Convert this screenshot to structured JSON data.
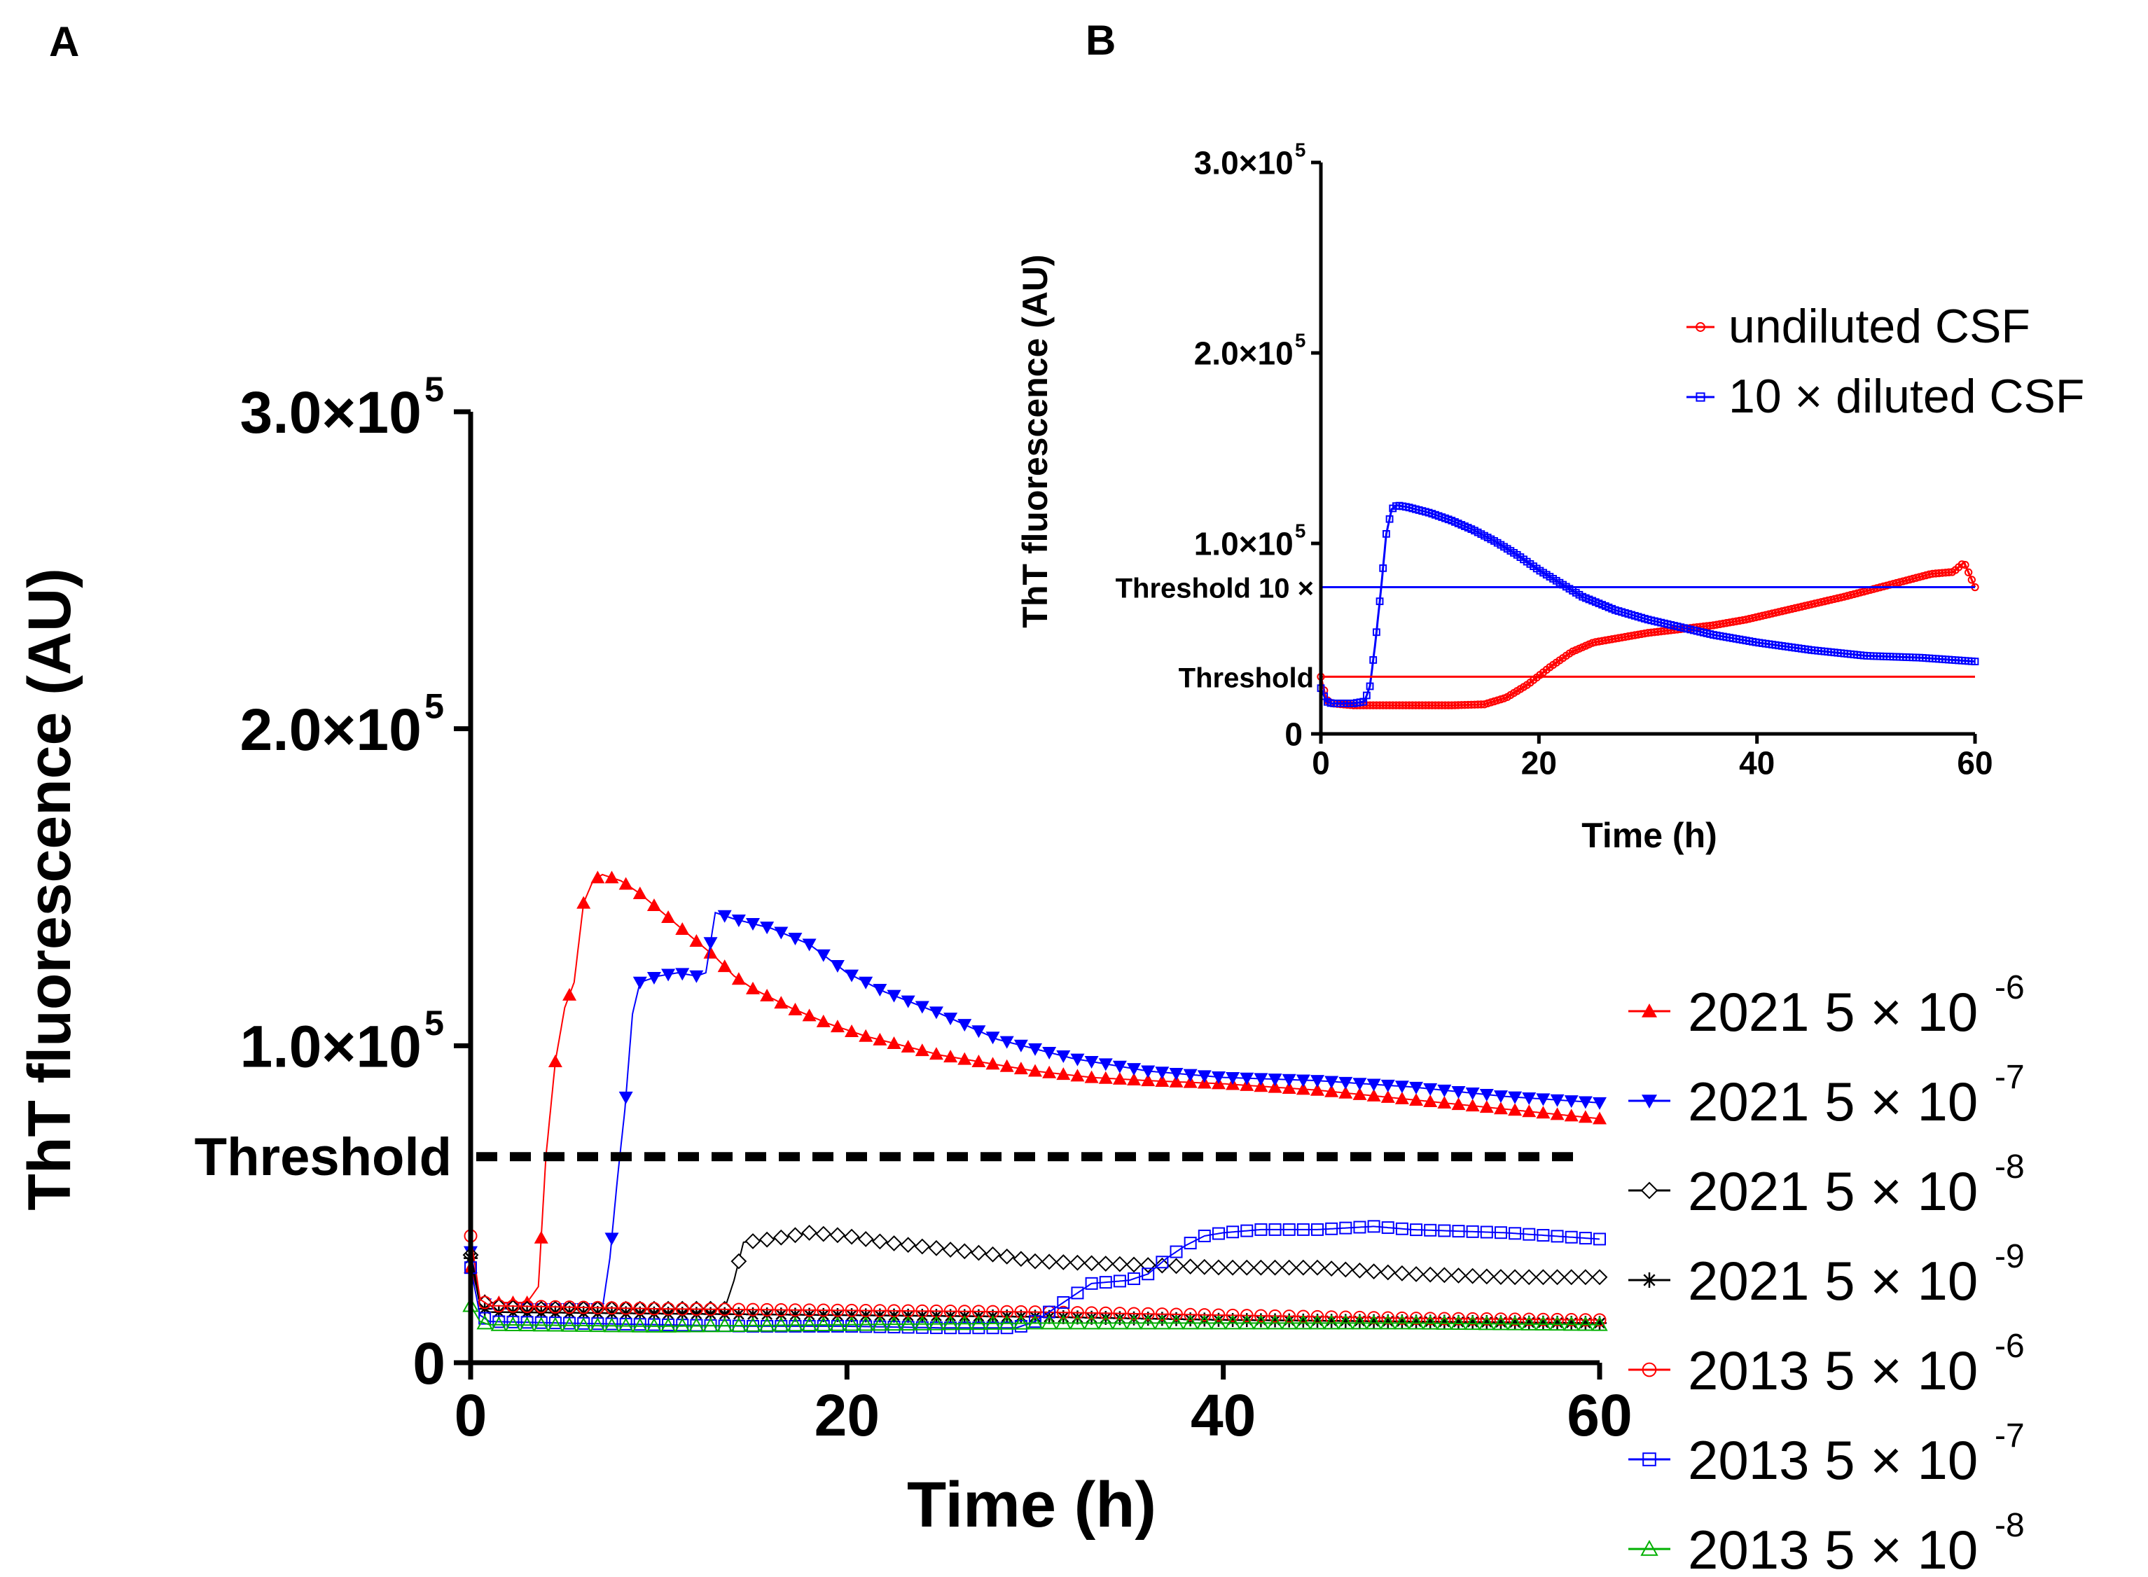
{
  "panels": {
    "a": {
      "label": "A"
    },
    "b": {
      "label": "B"
    }
  },
  "chart_data": [
    {
      "panel": "A",
      "type": "line",
      "title": "",
      "xlabel": "Time (h)",
      "ylabel": "ThT fluorescence (AU)",
      "xlim": [
        0,
        60
      ],
      "ylim": [
        0,
        300000
      ],
      "x_ticks": [
        "0",
        "20",
        "40",
        "60"
      ],
      "y_ticks": [
        {
          "value": 0,
          "label": "0"
        },
        {
          "value": 100000,
          "label": "1.0×10",
          "exp": "5"
        },
        {
          "value": 200000,
          "label": "2.0×10",
          "exp": "5"
        },
        {
          "value": 300000,
          "label": "3.0×10",
          "exp": "5"
        }
      ],
      "threshold": {
        "label": "Threshold",
        "value": 65000
      },
      "legend_position": "right",
      "series": [
        {
          "name": "2021 5 × 10",
          "exp": "-6",
          "color": "#ff0000",
          "marker": "triangle-up-filled",
          "x": [
            0,
            0.5,
            1,
            2,
            3,
            3.6,
            4,
            4.5,
            5,
            5.5,
            6,
            6.5,
            7,
            8,
            9,
            10,
            11,
            12,
            13,
            14,
            15,
            17,
            19,
            21,
            23,
            25,
            27,
            30,
            33,
            36,
            40,
            45,
            50,
            55,
            60
          ],
          "values": [
            30000,
            20000,
            19000,
            19000,
            19000,
            24000,
            65000,
            95000,
            112000,
            120000,
            145000,
            152000,
            154000,
            152000,
            148000,
            143000,
            138000,
            133000,
            128000,
            122000,
            118000,
            112000,
            107000,
            103000,
            100000,
            97000,
            95000,
            92000,
            90000,
            89000,
            88000,
            86000,
            83000,
            80000,
            77000
          ]
        },
        {
          "name": "2021 5 × 10",
          "exp": "-7",
          "color": "#0000ff",
          "marker": "triangle-down-filled",
          "x": [
            0,
            0.5,
            1,
            3,
            5,
            7,
            7.4,
            7.8,
            8.2,
            8.6,
            9,
            10,
            11,
            12,
            12.5,
            13,
            14,
            16,
            18,
            20,
            22,
            25,
            28,
            32,
            36,
            40,
            45,
            50,
            55,
            60
          ],
          "values": [
            35000,
            20000,
            17000,
            17000,
            17000,
            17000,
            33000,
            58000,
            80000,
            110000,
            120000,
            122000,
            123000,
            122000,
            123000,
            142000,
            140000,
            137000,
            132000,
            123000,
            117000,
            110000,
            102000,
            96000,
            92000,
            90000,
            89000,
            87000,
            84000,
            82000
          ]
        },
        {
          "name": "2021 5 × 10",
          "exp": "-8",
          "color": "#000000",
          "marker": "diamond-open",
          "x": [
            0,
            0.5,
            1,
            3,
            6,
            9,
            12,
            13.5,
            14,
            14.5,
            16,
            18,
            20,
            22,
            25,
            28,
            30,
            35,
            40,
            45,
            50,
            55,
            60
          ],
          "values": [
            34000,
            20000,
            18000,
            17000,
            17000,
            17000,
            17000,
            17000,
            26000,
            38000,
            39000,
            41000,
            40000,
            38000,
            36000,
            34000,
            32000,
            31000,
            30000,
            30000,
            28000,
            27000,
            27000
          ]
        },
        {
          "name": "2021 5 × 10",
          "exp": "-9",
          "color": "#000000",
          "marker": "asterisk",
          "x": [
            0,
            0.5,
            1,
            10,
            20,
            30,
            40,
            50,
            60
          ],
          "values": [
            33000,
            18000,
            16000,
            15500,
            15000,
            14500,
            13500,
            13000,
            12500
          ]
        },
        {
          "name": "2013 5 × 10",
          "exp": "-6",
          "color": "#ff0000",
          "marker": "circle-open",
          "x": [
            0,
            0.5,
            1,
            10,
            20,
            30,
            40,
            50,
            60
          ],
          "values": [
            40000,
            20000,
            18000,
            17000,
            16500,
            16000,
            15000,
            14000,
            13500
          ]
        },
        {
          "name": "2013 5 × 10",
          "exp": "-7",
          "color": "#0000ff",
          "marker": "square-open",
          "x": [
            0,
            0.5,
            1,
            5,
            10,
            15,
            20,
            25,
            29,
            30,
            31,
            32,
            33,
            35,
            36,
            37,
            38,
            39,
            40,
            42,
            45,
            48,
            50,
            55,
            60
          ],
          "values": [
            30000,
            15000,
            13000,
            12500,
            12000,
            11500,
            11500,
            11000,
            11000,
            13000,
            17000,
            21000,
            25000,
            26000,
            28000,
            33000,
            37000,
            40000,
            41000,
            42000,
            42000,
            43000,
            42000,
            41000,
            39000
          ]
        },
        {
          "name": "2013 5 × 10",
          "exp": "-8",
          "color": "#00b000",
          "marker": "triangle-up-open",
          "x": [
            0,
            0.5,
            1,
            10,
            20,
            30,
            40,
            50,
            60
          ],
          "values": [
            18000,
            13000,
            12000,
            11500,
            12000,
            12500,
            12500,
            12500,
            12000
          ]
        }
      ]
    },
    {
      "panel": "B",
      "type": "line",
      "title": "",
      "xlabel": "Time (h)",
      "ylabel": "ThT fluorescence (AU)",
      "xlim": [
        0,
        60
      ],
      "ylim": [
        0,
        300000
      ],
      "x_ticks": [
        "0",
        "20",
        "40",
        "60"
      ],
      "y_ticks": [
        {
          "value": 0,
          "label": "0"
        },
        {
          "value": 100000,
          "label": "1.0×10",
          "exp": "5"
        },
        {
          "value": 200000,
          "label": "2.0×10",
          "exp": "5"
        },
        {
          "value": 300000,
          "label": "3.0×10",
          "exp": "5"
        }
      ],
      "thresholds": [
        {
          "label": "Threshold 10 ×",
          "value": 77000,
          "color": "#0000ff"
        },
        {
          "label": "Threshold",
          "value": 30000,
          "color": "#ff0000"
        }
      ],
      "legend_position": "top-right",
      "series": [
        {
          "name": "undiluted CSF",
          "color": "#ff0000",
          "marker": "circle-open",
          "x": [
            0,
            0.5,
            1,
            3,
            5,
            8,
            12,
            15,
            17,
            19,
            21,
            23,
            25,
            28,
            30,
            33,
            36,
            39,
            42,
            45,
            48,
            50,
            52,
            54,
            56,
            58,
            59,
            60
          ],
          "values": [
            30000,
            18000,
            16000,
            15000,
            15000,
            15000,
            15000,
            15500,
            19000,
            26000,
            35000,
            43000,
            48000,
            51000,
            53000,
            55000,
            57000,
            60000,
            64000,
            68000,
            72000,
            75000,
            78000,
            81000,
            84000,
            85000,
            90000,
            77000
          ]
        },
        {
          "name": "10 × diluted CSF",
          "color": "#0000ff",
          "marker": "square-open",
          "x": [
            0,
            0.5,
            1,
            2,
            3,
            4,
            4.5,
            5,
            5.5,
            6,
            6.5,
            7,
            8,
            10,
            12,
            14,
            16,
            18,
            20,
            22,
            24,
            27,
            30,
            33,
            36,
            40,
            45,
            50,
            55,
            60
          ],
          "values": [
            24000,
            17000,
            16000,
            16000,
            16000,
            17000,
            25000,
            48000,
            75000,
            105000,
            118000,
            120000,
            119000,
            116000,
            112000,
            107000,
            101000,
            94000,
            86000,
            79000,
            72000,
            65000,
            60000,
            56000,
            52000,
            48000,
            44000,
            41000,
            40000,
            38000
          ]
        }
      ],
      "legend": [
        {
          "label": "undiluted CSF"
        },
        {
          "label": "10 × diluted CSF"
        }
      ]
    }
  ]
}
